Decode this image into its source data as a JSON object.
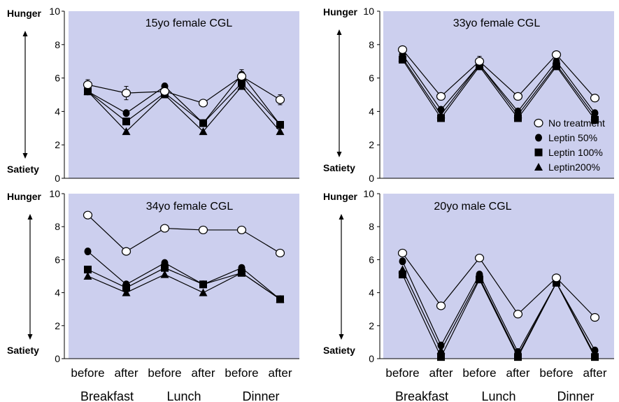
{
  "labels": {
    "hunger": "Hunger",
    "satiety": "Satiety"
  },
  "legend": [
    {
      "name": "No treatment",
      "marker": "open-circle"
    },
    {
      "name": "Leptin 50%",
      "marker": "filled-circle"
    },
    {
      "name": "Leptin 100%",
      "marker": "filled-square"
    },
    {
      "name": "Leptin200%",
      "marker": "filled-triangle"
    }
  ],
  "colors": {
    "plot_bg": "#cccfee",
    "marker": "#000000",
    "open_marker_fill": "#ffffff",
    "line": "#000000"
  },
  "x_ticks": [
    "before",
    "after",
    "before",
    "after",
    "before",
    "after"
  ],
  "x_groups": [
    "Breakfast",
    "Lunch",
    "Dinner"
  ],
  "chart_data": [
    {
      "type": "line",
      "title": "15yo female CGL",
      "categories": [
        "before",
        "after",
        "before",
        "after",
        "before",
        "after"
      ],
      "ylim": [
        0,
        10
      ],
      "yticks": [
        0,
        2,
        4,
        6,
        8,
        10
      ],
      "series": [
        {
          "name": "No treatment",
          "values": [
            5.6,
            5.1,
            5.2,
            4.5,
            6.1,
            4.7
          ],
          "err": [
            0.3,
            0.4,
            0,
            0,
            0.4,
            0.3
          ]
        },
        {
          "name": "Leptin 50%",
          "values": [
            5.2,
            3.9,
            5.5,
            3.3,
            6.2,
            3.2
          ]
        },
        {
          "name": "Leptin 100%",
          "values": [
            5.2,
            3.4,
            5.1,
            3.3,
            5.7,
            3.2
          ]
        },
        {
          "name": "Leptin200%",
          "values": [
            5.2,
            2.8,
            5.0,
            2.8,
            5.5,
            2.8
          ]
        }
      ]
    },
    {
      "type": "line",
      "title": "33yo female CGL",
      "categories": [
        "before",
        "after",
        "before",
        "after",
        "before",
        "after"
      ],
      "ylim": [
        0,
        10
      ],
      "yticks": [
        0,
        2,
        4,
        6,
        8,
        10
      ],
      "series": [
        {
          "name": "No treatment",
          "values": [
            7.7,
            4.9,
            7.0,
            4.9,
            7.4,
            4.8
          ],
          "err": [
            0,
            0,
            0.3,
            0,
            0,
            0
          ]
        },
        {
          "name": "Leptin 50%",
          "values": [
            7.4,
            4.1,
            6.8,
            4.0,
            7.0,
            3.9
          ]
        },
        {
          "name": "Leptin 100%",
          "values": [
            7.1,
            3.6,
            6.7,
            3.6,
            6.7,
            3.5
          ]
        },
        {
          "name": "Leptin200%",
          "values": [
            7.2,
            3.8,
            6.8,
            3.8,
            6.8,
            3.7
          ]
        }
      ]
    },
    {
      "type": "line",
      "title": "34yo female CGL",
      "categories": [
        "before",
        "after",
        "before",
        "after",
        "before",
        "after"
      ],
      "ylim": [
        0,
        10
      ],
      "yticks": [
        0,
        2,
        4,
        6,
        8,
        10
      ],
      "series": [
        {
          "name": "No treatment",
          "values": [
            8.7,
            6.5,
            7.9,
            7.8,
            7.8,
            6.4
          ]
        },
        {
          "name": "Leptin 50%",
          "values": [
            6.5,
            4.5,
            5.8,
            4.5,
            5.5,
            3.6
          ]
        },
        {
          "name": "Leptin 100%",
          "values": [
            5.4,
            4.3,
            5.5,
            4.5,
            5.2,
            3.6
          ]
        },
        {
          "name": "Leptin200%",
          "values": [
            5.0,
            4.0,
            5.1,
            4.0,
            5.2,
            3.6
          ]
        }
      ]
    },
    {
      "type": "line",
      "title": "20yo male CGL",
      "categories": [
        "before",
        "after",
        "before",
        "after",
        "before",
        "after"
      ],
      "ylim": [
        0,
        10
      ],
      "yticks": [
        0,
        2,
        4,
        6,
        8,
        10
      ],
      "series": [
        {
          "name": "No treatment",
          "values": [
            6.4,
            3.2,
            6.1,
            2.7,
            4.9,
            2.5
          ]
        },
        {
          "name": "Leptin 50%",
          "values": [
            5.9,
            0.8,
            5.1,
            0.4,
            4.6,
            0.5
          ]
        },
        {
          "name": "Leptin 100%",
          "values": [
            5.1,
            0.1,
            4.8,
            0.1,
            4.6,
            0.1
          ]
        },
        {
          "name": "Leptin200%",
          "values": [
            5.4,
            0.5,
            4.9,
            0.2,
            4.6,
            0.2
          ]
        }
      ]
    }
  ]
}
